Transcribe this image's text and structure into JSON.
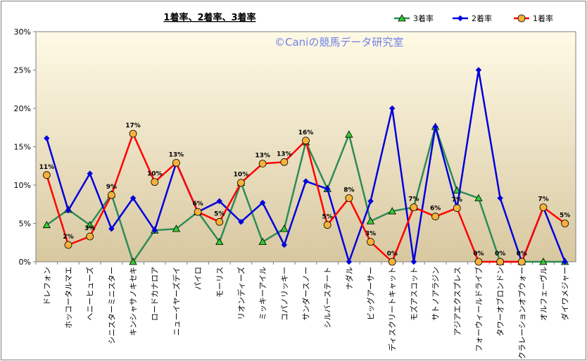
{
  "chart_data": {
    "type": "line",
    "title": "1着率、2着率、3着率",
    "watermark": "©Caniの競馬データ研究室",
    "ylim": [
      0,
      30
    ],
    "yticks": [
      "0%",
      "5%",
      "10%",
      "15%",
      "20%",
      "25%",
      "30%"
    ],
    "legend_position": "top-right",
    "grid": false,
    "categories": [
      "ドレフォン",
      "ホッコータルマエ",
      "ヘニーヒューズ",
      "シニスターミニスター",
      "キンシャサノキセキ",
      "ロードカナロア",
      "ニューイヤーズデイ",
      "パイロ",
      "モーリス",
      "リオンディーズ",
      "ミッキーアイル",
      "コパノリッキー",
      "サンダースノー",
      "シルバーステート",
      "ナダル",
      "ビッグアーサー",
      "ディスクリートキャット",
      "モズアスコット",
      "サトノアラジン",
      "アジアエクスプレス",
      "フォーウィールドライブ",
      "タワーオブロンドン",
      "デクラレーションオブウォー",
      "オルフェーヴル",
      "ダイワメジャー"
    ],
    "series": [
      {
        "name": "3着率",
        "color": "#2e8b57",
        "marker": "triangle",
        "values": [
          4.8,
          6.8,
          4.8,
          8.8,
          0,
          4.1,
          4.3,
          6.5,
          2.6,
          10.3,
          2.6,
          4.3,
          15.6,
          9.5,
          16.6,
          5.3,
          6.6,
          7.1,
          17.6,
          9.3,
          8.3,
          0,
          0,
          0,
          0
        ]
      },
      {
        "name": "2着率",
        "color": "#0000dd",
        "marker": "diamond",
        "values": [
          16.1,
          6.7,
          11.5,
          4.3,
          8.3,
          4.1,
          12.9,
          6.5,
          7.9,
          5.2,
          7.7,
          2.2,
          10.5,
          9.5,
          0,
          7.9,
          20,
          0,
          17.6,
          7.0,
          25,
          8.3,
          0,
          7.1,
          0
        ]
      },
      {
        "name": "1着率",
        "color": "#ff0000",
        "marker": "circle",
        "values": [
          11.3,
          2.2,
          3.3,
          8.7,
          16.7,
          10.4,
          12.9,
          6.5,
          5.2,
          10.3,
          12.8,
          13.0,
          15.8,
          4.8,
          8.3,
          2.6,
          0,
          7.1,
          5.9,
          7.0,
          0,
          0,
          0,
          7.1,
          5.0
        ]
      }
    ],
    "data_labels": [
      "11%",
      "2%",
      "3%",
      "9%",
      "17%",
      "10%",
      "13%",
      "6%",
      "5%",
      "10%",
      "13%",
      "13%",
      "16%",
      "5%",
      "8%",
      "3%",
      "0%",
      "7%",
      "6%",
      "7%",
      "0%",
      "0%",
      "0%",
      "7%",
      "5%"
    ]
  },
  "colors": {
    "plot_top": "#fffae6",
    "plot_bottom": "#d8c8a0"
  }
}
